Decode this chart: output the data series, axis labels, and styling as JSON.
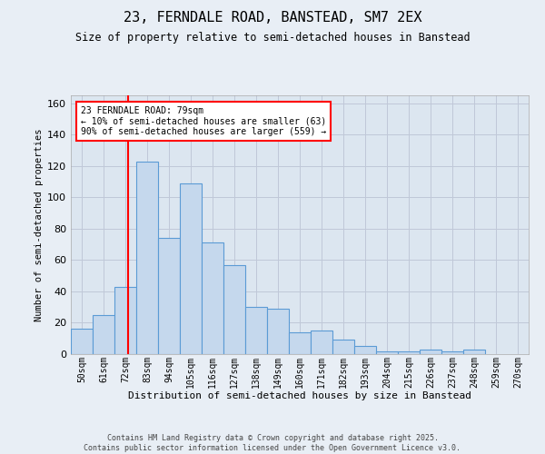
{
  "title_line1": "23, FERNDALE ROAD, BANSTEAD, SM7 2EX",
  "title_line2": "Size of property relative to semi-detached houses in Banstead",
  "xlabel": "Distribution of semi-detached houses by size in Banstead",
  "ylabel": "Number of semi-detached properties",
  "categories": [
    "50sqm",
    "61sqm",
    "72sqm",
    "83sqm",
    "94sqm",
    "105sqm",
    "116sqm",
    "127sqm",
    "138sqm",
    "149sqm",
    "160sqm",
    "171sqm",
    "182sqm",
    "193sqm",
    "204sqm",
    "215sqm",
    "226sqm",
    "237sqm",
    "248sqm",
    "259sqm",
    "270sqm"
  ],
  "annotation_text": "23 FERNDALE ROAD: 79sqm\n← 10% of semi-detached houses are smaller (63)\n90% of semi-detached houses are larger (559) →",
  "bar_color": "#c5d8ed",
  "bar_edge_color": "#5b9bd5",
  "vline_color": "red",
  "grid_color": "#c0c8d8",
  "plot_bg_color": "#dce6f0",
  "fig_bg_color": "#e8eef5",
  "footer_text": "Contains HM Land Registry data © Crown copyright and database right 2025.\nContains public sector information licensed under the Open Government Licence v3.0.",
  "ylim": [
    0,
    165
  ],
  "yticks": [
    0,
    20,
    40,
    60,
    80,
    100,
    120,
    140,
    160
  ],
  "bin_edges": [
    50,
    61,
    72,
    83,
    94,
    105,
    116,
    127,
    138,
    149,
    160,
    171,
    182,
    193,
    204,
    215,
    226,
    237,
    248,
    259,
    270
  ],
  "bin_values": [
    16,
    25,
    43,
    123,
    74,
    109,
    71,
    57,
    30,
    29,
    14,
    15,
    9,
    5,
    2,
    2,
    3,
    2,
    3,
    0,
    0
  ],
  "property_sqm": 79
}
